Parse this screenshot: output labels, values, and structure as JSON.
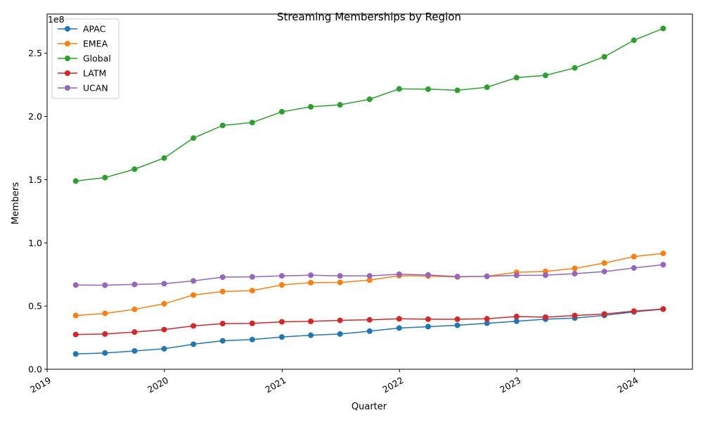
{
  "chart_data": {
    "type": "line",
    "title": "Streaming Memberships by Region",
    "xlabel": "Quarter",
    "ylabel": "Members",
    "y_offset_label": "1e8",
    "x": [
      "2019-03-31",
      "2019-06-30",
      "2019-09-30",
      "2019-12-31",
      "2020-03-31",
      "2020-06-30",
      "2020-09-30",
      "2020-12-31",
      "2021-03-31",
      "2021-06-30",
      "2021-09-30",
      "2021-12-31",
      "2022-03-31",
      "2022-06-30",
      "2022-09-30",
      "2022-12-31",
      "2023-03-31",
      "2023-06-30",
      "2023-09-30",
      "2023-12-31",
      "2024-03-31"
    ],
    "xlim": [
      "2019-01-01",
      "2024-06-30"
    ],
    "ylim": [
      0,
      281000000
    ],
    "x_ticks": [
      {
        "date": "2019-01-01",
        "label": "2019"
      },
      {
        "date": "2020-01-01",
        "label": "2020"
      },
      {
        "date": "2021-01-01",
        "label": "2021"
      },
      {
        "date": "2022-01-01",
        "label": "2022"
      },
      {
        "date": "2023-01-01",
        "label": "2023"
      },
      {
        "date": "2024-01-01",
        "label": "2024"
      }
    ],
    "y_ticks": [
      {
        "value": 0,
        "label": "0.0"
      },
      {
        "value": 50000000,
        "label": "0.5"
      },
      {
        "value": 100000000,
        "label": "1.0"
      },
      {
        "value": 150000000,
        "label": "1.5"
      },
      {
        "value": 200000000,
        "label": "2.0"
      },
      {
        "value": 250000000,
        "label": "2.5"
      }
    ],
    "grid": false,
    "legend_position": "top-left",
    "series": [
      {
        "name": "APAC",
        "color": "#1f77b4",
        "values": [
          12100000,
          12900000,
          14500000,
          16200000,
          19800000,
          22500000,
          23500000,
          25500000,
          26900000,
          27900000,
          30100000,
          32600000,
          33700000,
          34800000,
          36400000,
          38000000,
          39600000,
          40500000,
          42600000,
          45400000,
          47500000
        ]
      },
      {
        "name": "EMEA",
        "color": "#ff7f0e",
        "values": [
          42500000,
          44200000,
          47400000,
          51800000,
          58700000,
          61500000,
          62200000,
          66700000,
          68500000,
          68700000,
          70500000,
          74000000,
          73700000,
          73000000,
          73500000,
          76700000,
          77400000,
          79800000,
          84000000,
          89100000,
          91700000
        ]
      },
      {
        "name": "Global",
        "color": "#2ca02c",
        "values": [
          148900000,
          151600000,
          158300000,
          167100000,
          182900000,
          192900000,
          195200000,
          203700000,
          207600000,
          209200000,
          213600000,
          221800000,
          221600000,
          220700000,
          223100000,
          230700000,
          232500000,
          238400000,
          247200000,
          260300000,
          269600000
        ]
      },
      {
        "name": "LATM",
        "color": "#d62728",
        "values": [
          27500000,
          27900000,
          29400000,
          31400000,
          34300000,
          36100000,
          36300000,
          37500000,
          37900000,
          38700000,
          39100000,
          39900000,
          39600000,
          39600000,
          39900000,
          41700000,
          41200000,
          42500000,
          43700000,
          46000000,
          47700000
        ]
      },
      {
        "name": "UCAN",
        "color": "#9467bd",
        "values": [
          66600000,
          66500000,
          67100000,
          67700000,
          69900000,
          72900000,
          73100000,
          73900000,
          74400000,
          73900000,
          73900000,
          75200000,
          74600000,
          73300000,
          73500000,
          74300000,
          74400000,
          75600000,
          77300000,
          80100000,
          82700000
        ]
      }
    ]
  }
}
